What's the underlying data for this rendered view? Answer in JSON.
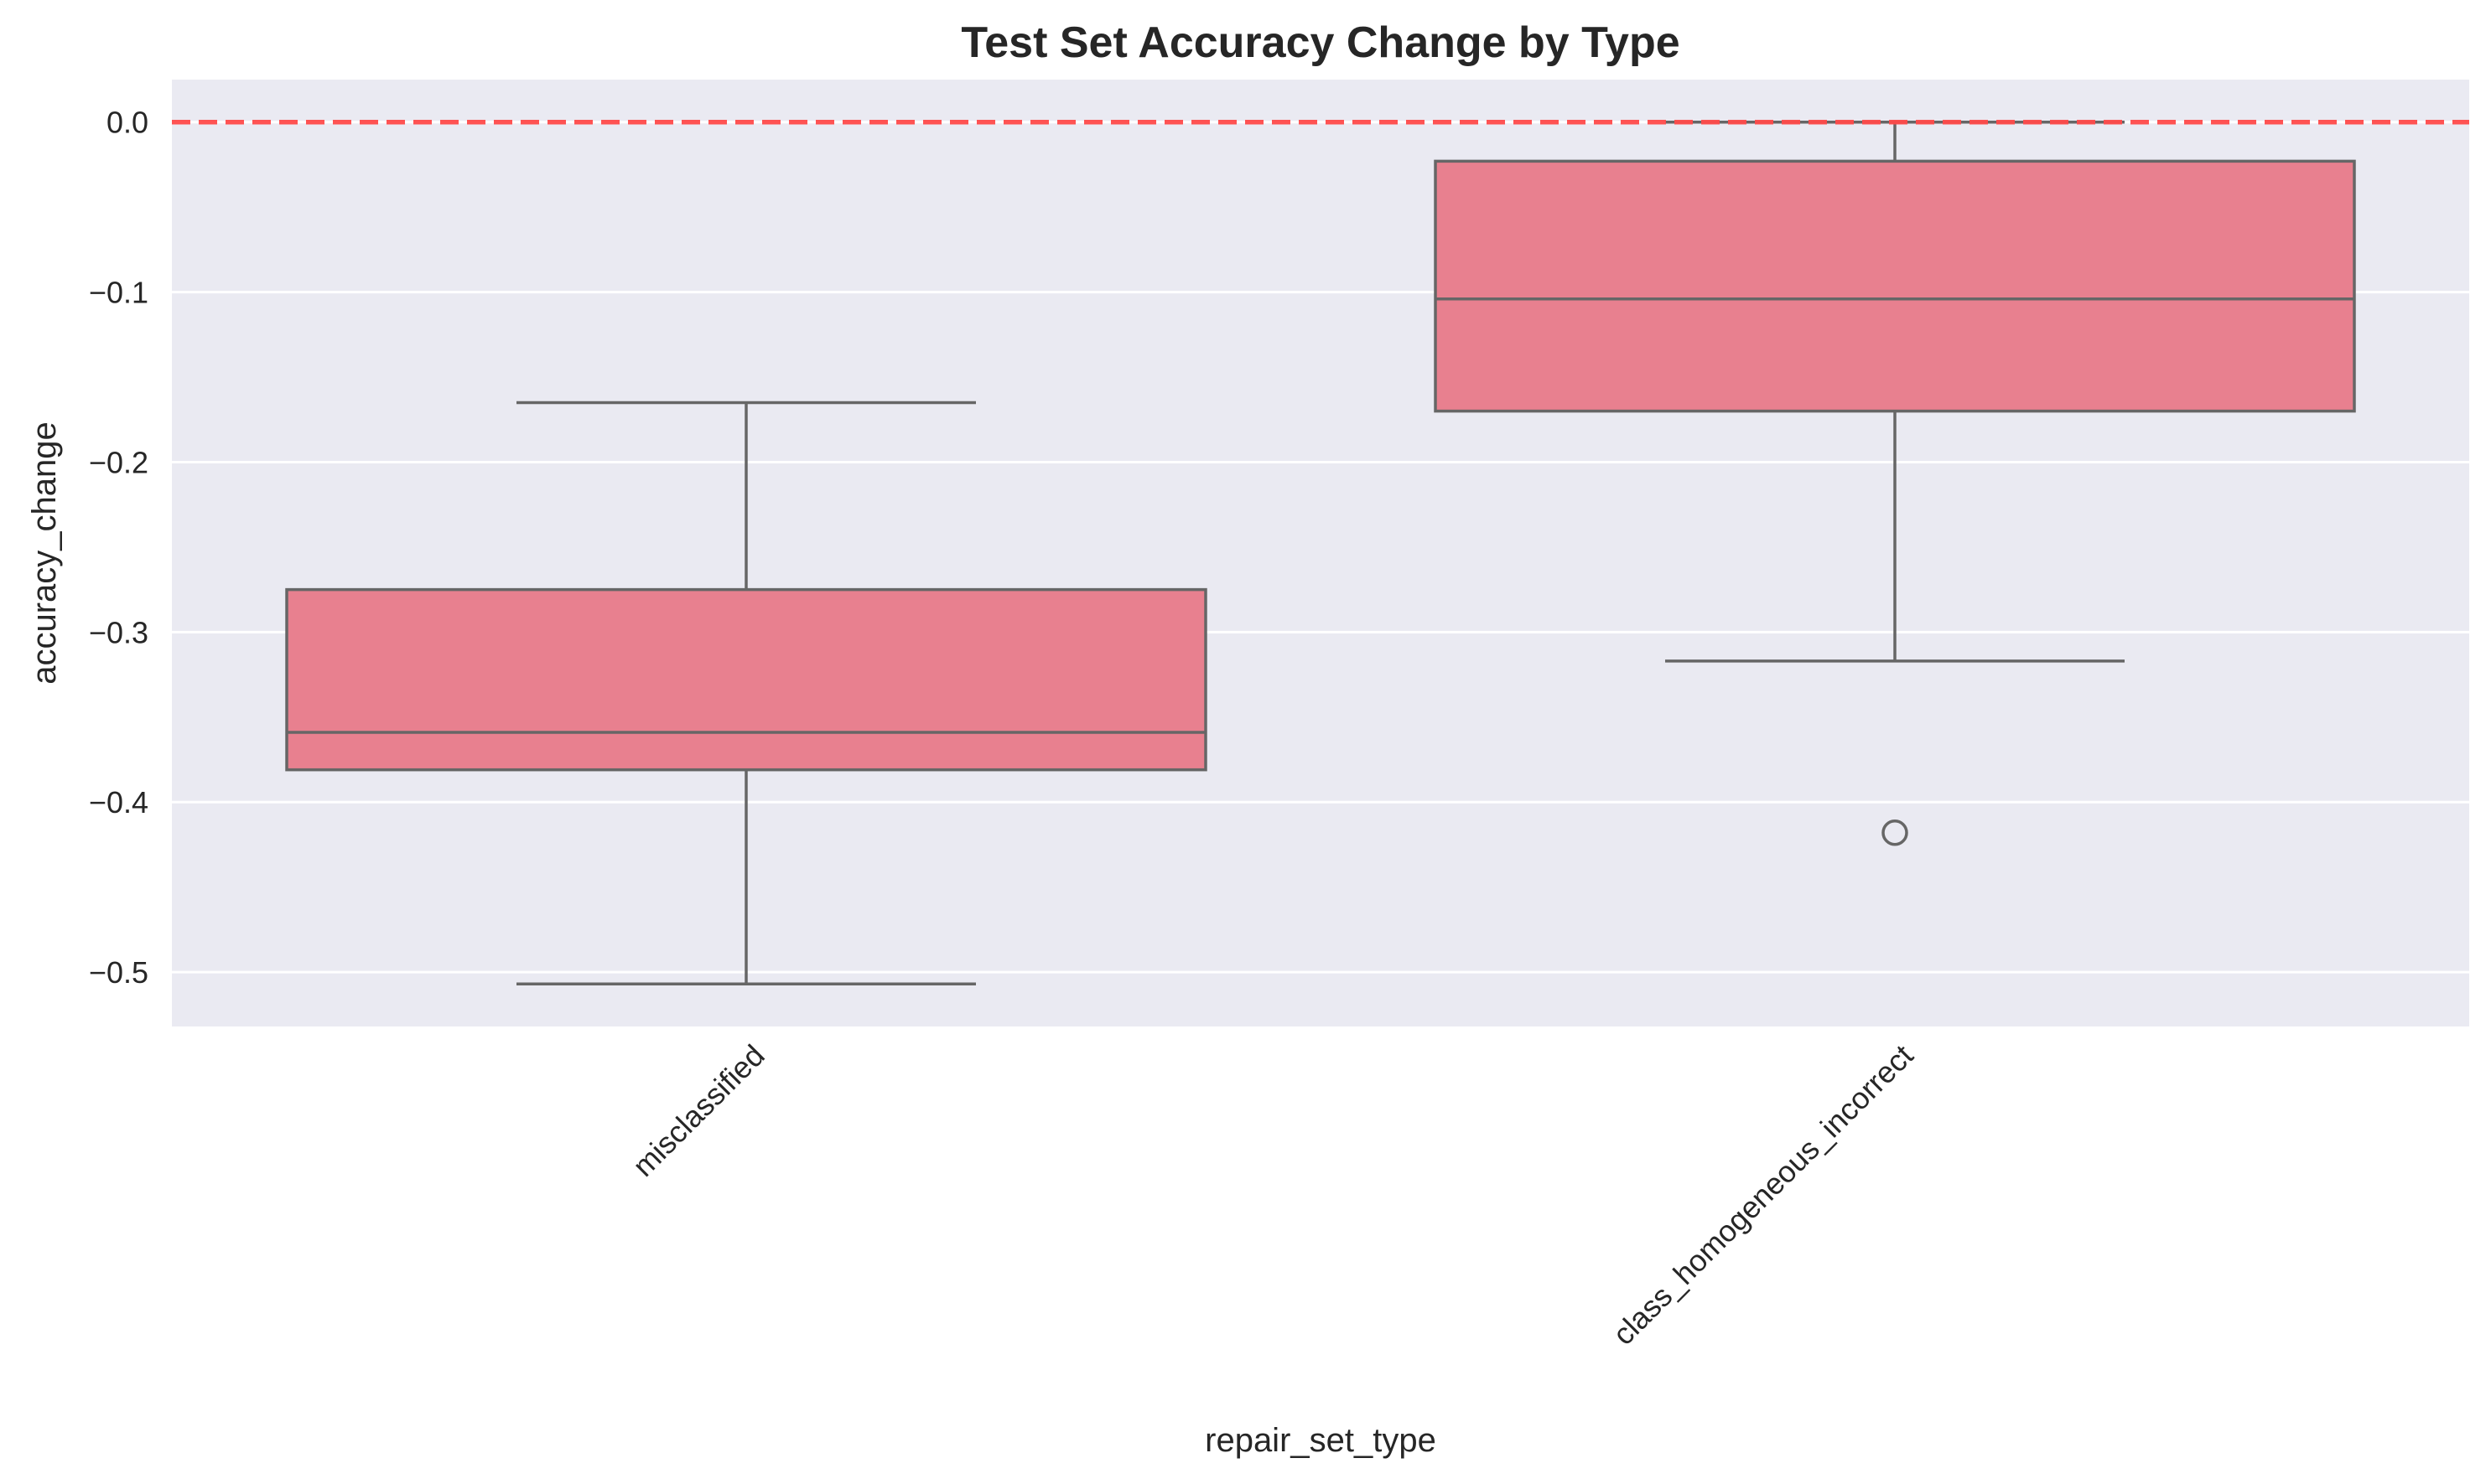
{
  "chart_data": {
    "type": "box",
    "title": "Test Set Accuracy Change by Type",
    "xlabel": "repair_set_type",
    "ylabel": "accuracy_change",
    "ylim": [
      -0.532,
      0.025
    ],
    "yticks": [
      0.0,
      -0.1,
      -0.2,
      -0.3,
      -0.4,
      -0.5
    ],
    "ytick_labels": [
      "0.0",
      "−0.1",
      "−0.2",
      "−0.3",
      "−0.4",
      "−0.5"
    ],
    "categories": [
      "misclassified",
      "class_homogeneous_incorrect"
    ],
    "boxes": [
      {
        "name": "misclassified",
        "whisker_low": -0.507,
        "q1": -0.381,
        "median": -0.359,
        "q3": -0.275,
        "whisker_high": -0.165,
        "outliers": []
      },
      {
        "name": "class_homogeneous_incorrect",
        "whisker_low": -0.317,
        "q1": -0.17,
        "median": -0.104,
        "q3": -0.023,
        "whisker_high": 0.0,
        "outliers": [
          -0.418
        ]
      }
    ],
    "reference_line": {
      "y": 0.0,
      "style": "dashed",
      "color": "#ff4a4a"
    },
    "grid": true,
    "box_color": "#e8808f",
    "line_color": "#666666",
    "background_color": "#eaeaf2"
  }
}
